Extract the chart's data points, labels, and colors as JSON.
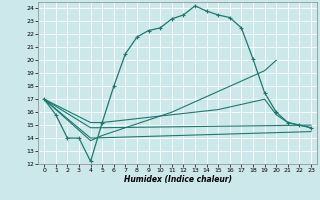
{
  "xlabel": "Humidex (Indice chaleur)",
  "bg_color": "#cde8eb",
  "grid_color": "#b0d8dc",
  "line_color": "#1a7a6e",
  "xlim": [
    -0.5,
    23.5
  ],
  "ylim": [
    12,
    24.5
  ],
  "xtick_vals": [
    0,
    1,
    2,
    3,
    4,
    5,
    6,
    7,
    8,
    9,
    10,
    11,
    12,
    13,
    14,
    15,
    16,
    17,
    18,
    19,
    20,
    21,
    22,
    23
  ],
  "ytick_vals": [
    12,
    13,
    14,
    15,
    16,
    17,
    18,
    19,
    20,
    21,
    22,
    23,
    24
  ],
  "line1_x": [
    0,
    1,
    2,
    3,
    4,
    5,
    6,
    7,
    8,
    9,
    10,
    11,
    12,
    13,
    14,
    15,
    16,
    17,
    18,
    19,
    20,
    21,
    22,
    23
  ],
  "line1_y": [
    17.0,
    15.8,
    14.0,
    14.0,
    12.2,
    15.2,
    18.0,
    20.5,
    21.8,
    22.3,
    22.5,
    23.2,
    23.5,
    24.2,
    23.8,
    23.5,
    23.3,
    22.5,
    20.1,
    17.5,
    16.0,
    15.2,
    15.0,
    14.8
  ],
  "line2_x": [
    0,
    4,
    5,
    6,
    7,
    8,
    9,
    10,
    11,
    12,
    13,
    14,
    15,
    16,
    17,
    18,
    19,
    20
  ],
  "line2_y": [
    17.0,
    13.8,
    14.2,
    14.5,
    14.8,
    15.1,
    15.4,
    15.7,
    16.0,
    16.4,
    16.8,
    17.2,
    17.6,
    18.0,
    18.4,
    18.8,
    19.2,
    20.0
  ],
  "line3_x": [
    0,
    4,
    5,
    6,
    7,
    8,
    9,
    10,
    11,
    12,
    13,
    14,
    15,
    16,
    17,
    18,
    19,
    20,
    21,
    22,
    23
  ],
  "line3_y": [
    17.0,
    15.2,
    15.2,
    15.3,
    15.4,
    15.5,
    15.6,
    15.7,
    15.8,
    15.9,
    16.0,
    16.1,
    16.2,
    16.4,
    16.6,
    16.8,
    17.0,
    15.8,
    15.2,
    15.0,
    14.8
  ],
  "line4_x": [
    0,
    4,
    5,
    23
  ],
  "line4_y": [
    17.0,
    14.8,
    14.8,
    15.0
  ],
  "line5_x": [
    0,
    4,
    23
  ],
  "line5_y": [
    17.0,
    14.0,
    14.5
  ]
}
